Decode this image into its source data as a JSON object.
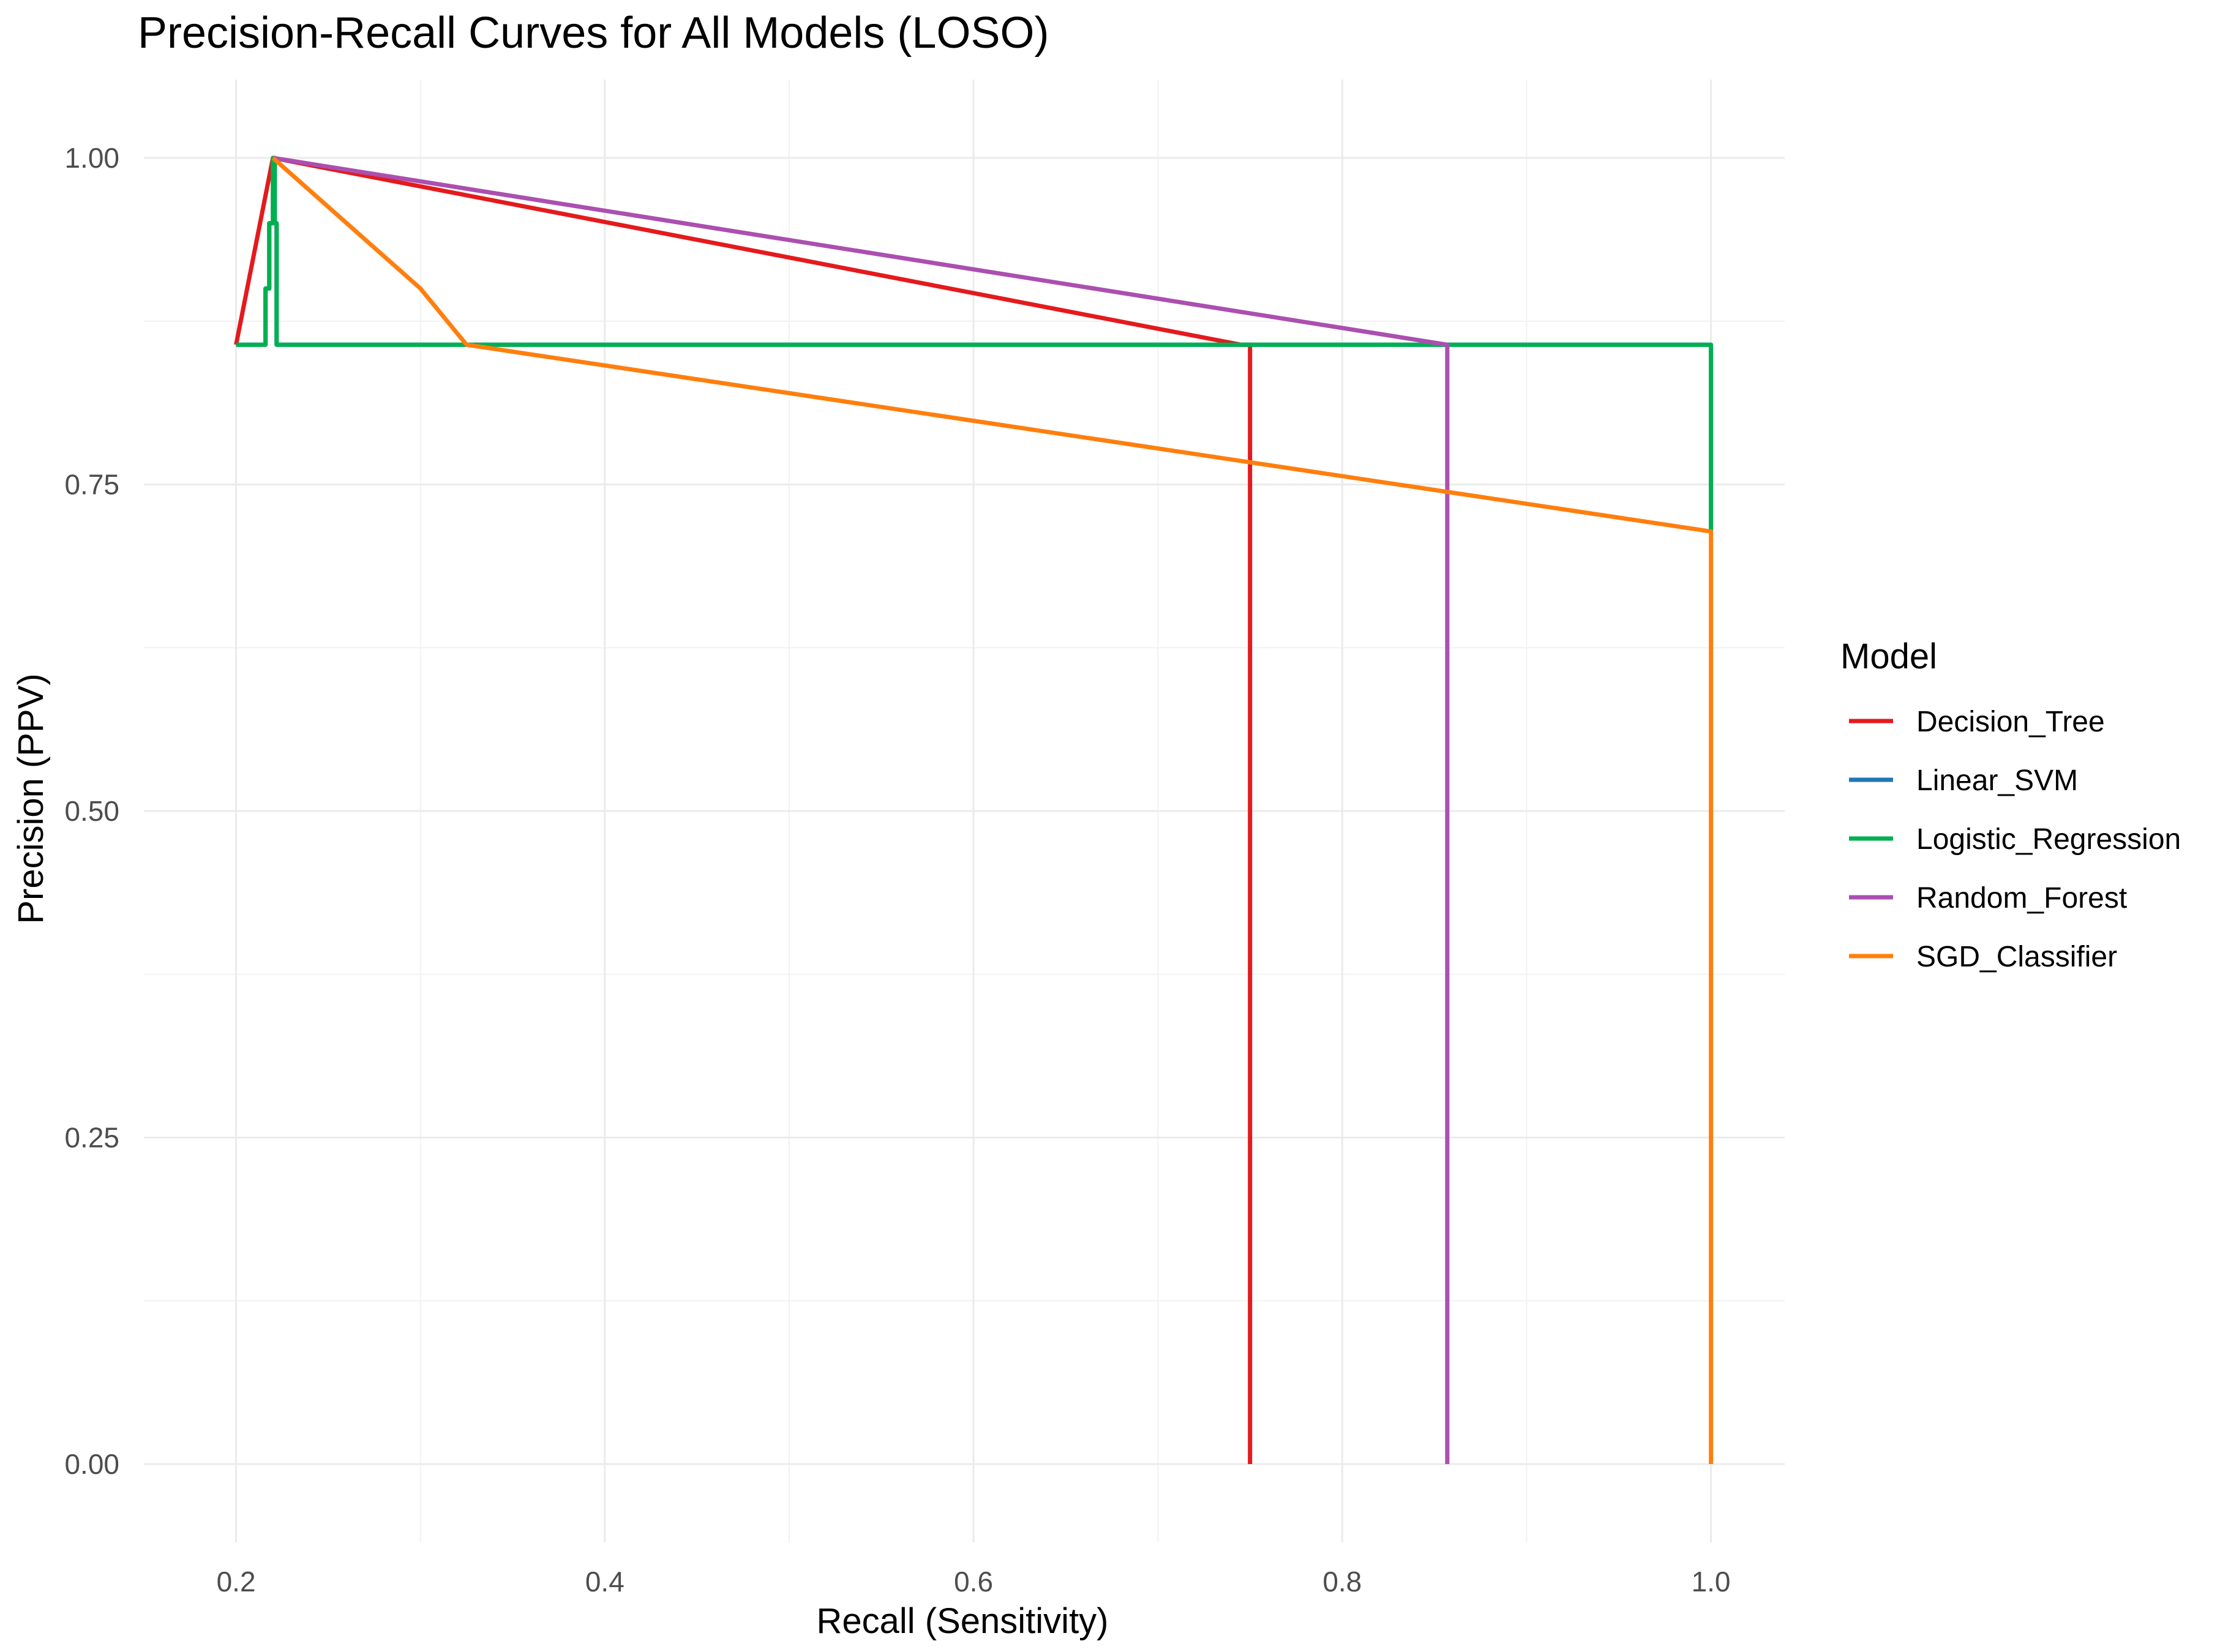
{
  "chart_data": {
    "type": "line",
    "title": "Precision-Recall Curves for All Models (LOSO)",
    "xlabel": "Recall (Sensitivity)",
    "ylabel": "Precision (PPV)",
    "xlim": [
      0.15,
      1.04
    ],
    "ylim": [
      -0.06,
      1.06
    ],
    "x_ticks": [
      0.2,
      0.4,
      0.6,
      0.8,
      1.0
    ],
    "x_tick_labels": [
      "0.2",
      "0.4",
      "0.6",
      "0.8",
      "1.0"
    ],
    "y_ticks": [
      0.0,
      0.25,
      0.5,
      0.75,
      1.0
    ],
    "y_tick_labels": [
      "0.00",
      "0.25",
      "0.50",
      "0.75",
      "1.00"
    ],
    "grid": true,
    "legend": {
      "title": "Model",
      "position": "right"
    },
    "series": [
      {
        "name": "Decision_Tree",
        "color": "#e41a1c",
        "points": [
          [
            0.2,
            0.857
          ],
          [
            0.22,
            1.0
          ],
          [
            0.745,
            0.857
          ],
          [
            0.75,
            0.857
          ],
          [
            0.75,
            0.0
          ]
        ]
      },
      {
        "name": "Linear_SVM",
        "color": "#1f78b4",
        "points": [
          [
            0.2,
            0.857
          ],
          [
            0.216,
            0.857
          ],
          [
            0.216,
            0.9
          ],
          [
            0.218,
            0.9
          ],
          [
            0.218,
            0.95
          ],
          [
            0.22,
            0.95
          ],
          [
            0.22,
            1.0
          ],
          [
            0.221,
            1.0
          ],
          [
            0.221,
            0.95
          ],
          [
            0.222,
            0.95
          ],
          [
            0.222,
            0.857
          ],
          [
            1.0,
            0.857
          ],
          [
            1.0,
            0.714
          ]
        ]
      },
      {
        "name": "Logistic_Regression",
        "color": "#00b050",
        "points": [
          [
            0.2,
            0.857
          ],
          [
            0.216,
            0.857
          ],
          [
            0.216,
            0.9
          ],
          [
            0.218,
            0.9
          ],
          [
            0.218,
            0.95
          ],
          [
            0.22,
            0.95
          ],
          [
            0.22,
            1.0
          ],
          [
            0.221,
            1.0
          ],
          [
            0.221,
            0.95
          ],
          [
            0.222,
            0.95
          ],
          [
            0.222,
            0.857
          ],
          [
            1.0,
            0.857
          ],
          [
            1.0,
            0.714
          ]
        ]
      },
      {
        "name": "Random_Forest",
        "color": "#ab4fb0",
        "points": [
          [
            0.22,
            1.0
          ],
          [
            0.857,
            0.857
          ],
          [
            0.857,
            0.0
          ]
        ]
      },
      {
        "name": "SGD_Classifier",
        "color": "#ff7f0e",
        "points": [
          [
            0.22,
            1.0
          ],
          [
            0.3,
            0.9
          ],
          [
            0.325,
            0.857
          ],
          [
            1.0,
            0.714
          ],
          [
            1.0,
            0.0
          ]
        ]
      }
    ]
  }
}
